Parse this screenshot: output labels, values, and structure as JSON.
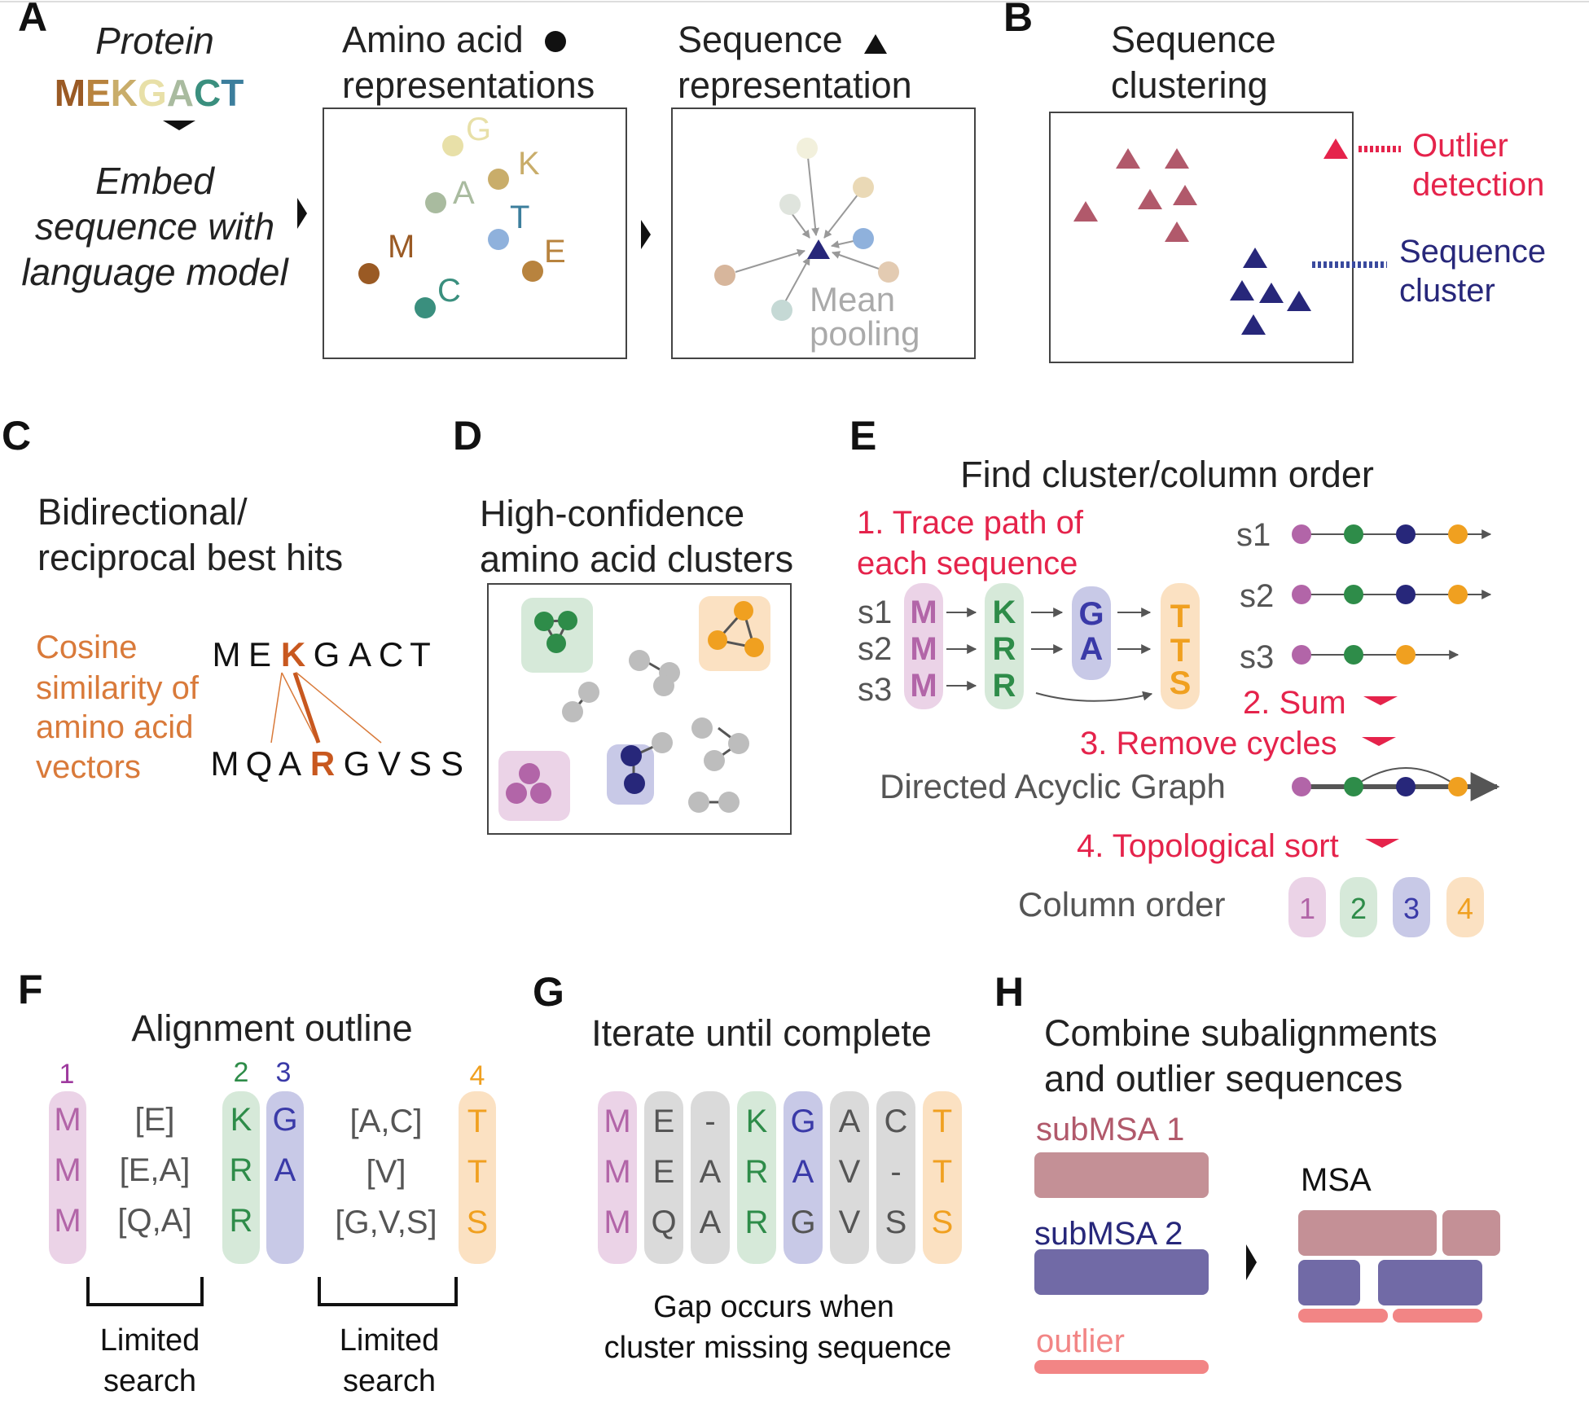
{
  "colors": {
    "M": "#9a5a24",
    "E": "#b8833e",
    "K": "#c9ad6a",
    "G": "#e8e0a8",
    "A": "#a9bb9f",
    "C": "#3a8f7e",
    "T": "#3c7e9c",
    "Tdot": "#8fb1dc",
    "cluster_red": "#b1596b",
    "cluster_blue": "#27277a",
    "accent_red": "#e5234b",
    "orange": "#d97a3a",
    "col1": "#b265a8",
    "col2": "#2e8c49",
    "col3": "#3a3aa8",
    "col4": "#f0a020",
    "submsa1": "#c49096",
    "submsa2": "#716aa6",
    "outlier": "#f28585"
  },
  "panel_a": {
    "letter": "A",
    "protein_label": "Protein",
    "protein_seq": [
      "M",
      "E",
      "K",
      "G",
      "A",
      "C",
      "T"
    ],
    "embed_text": [
      "Embed",
      "sequence with",
      "language model"
    ],
    "aa_title": [
      "Amino acid",
      "representations"
    ],
    "aa_points": [
      {
        "label": "G",
        "color_key": "G"
      },
      {
        "label": "K",
        "color_key": "K"
      },
      {
        "label": "A",
        "color_key": "A"
      },
      {
        "label": "T",
        "color_key": "T"
      },
      {
        "label": "M",
        "color_key": "M"
      },
      {
        "label": "E",
        "color_key": "E"
      },
      {
        "label": "C",
        "color_key": "C"
      }
    ],
    "seq_title": [
      "Sequence",
      "representation"
    ],
    "pooling_label": [
      "Mean",
      "pooling"
    ]
  },
  "panel_b": {
    "letter": "B",
    "title": [
      "Sequence",
      "clustering"
    ],
    "outlier_label": [
      "Outlier",
      "detection"
    ],
    "cluster_label": [
      "Sequence",
      "cluster"
    ]
  },
  "panel_c": {
    "letter": "C",
    "title": [
      "Bidirectional/",
      "reciprocal best hits"
    ],
    "cosine_label": [
      "Cosine",
      "similarity of",
      "amino acid",
      "vectors"
    ],
    "seq_top": [
      "M",
      "E",
      "K",
      "G",
      "A",
      "C",
      "T"
    ],
    "seq_bottom": [
      "M",
      "Q",
      "A",
      "R",
      "G",
      "V",
      "S",
      "S"
    ]
  },
  "panel_d": {
    "letter": "D",
    "title": [
      "High-confidence",
      "amino acid clusters"
    ]
  },
  "panel_e": {
    "letter": "E",
    "title": "Find cluster/column order",
    "step1": [
      "1. Trace path of",
      "each sequence"
    ],
    "seq_labels": [
      "s1",
      "s2",
      "s3"
    ],
    "col1_letters": [
      "M",
      "M",
      "M"
    ],
    "col2_letters": [
      "K",
      "R",
      "R"
    ],
    "col3_letters": [
      "G",
      "A"
    ],
    "col4_letters": [
      "T",
      "T",
      "S"
    ],
    "step2": "2. Sum",
    "step3": "3. Remove cycles",
    "dag_label": "Directed Acyclic Graph",
    "step4": "4. Topological sort",
    "column_order_label": "Column order",
    "column_order": [
      "1",
      "2",
      "3",
      "4"
    ]
  },
  "panel_f": {
    "letter": "F",
    "title": "Alignment outline",
    "col_numbers": [
      "1",
      "2",
      "3",
      "4"
    ],
    "col1": [
      "M",
      "M",
      "M"
    ],
    "gap1": [
      "[E]",
      "[E,A]",
      "[Q,A]"
    ],
    "col2": [
      "K",
      "R",
      "R"
    ],
    "col3": [
      "G",
      "A"
    ],
    "gap2": [
      "[A,C]",
      "[V]",
      "[G,V,S]"
    ],
    "col4": [
      "T",
      "T",
      "S"
    ],
    "search1": [
      "Limited",
      "search"
    ],
    "search2": [
      "Limited",
      "search"
    ]
  },
  "panel_g": {
    "letter": "G",
    "title": "Iterate until complete",
    "columns": [
      [
        "M",
        "M",
        "M"
      ],
      [
        "E",
        "E",
        "Q"
      ],
      [
        "-",
        "A",
        "A"
      ],
      [
        "K",
        "R",
        "R"
      ],
      [
        "G",
        "A",
        "G"
      ],
      [
        "A",
        "V",
        "V"
      ],
      [
        "C",
        "-",
        "S"
      ],
      [
        "T",
        "T",
        "S"
      ]
    ],
    "caption": [
      "Gap occurs when",
      "cluster missing sequence"
    ]
  },
  "panel_h": {
    "letter": "H",
    "title": [
      "Combine subalignments",
      "and outlier sequences"
    ],
    "submsa1_label": "subMSA 1",
    "submsa2_label": "subMSA 2",
    "outlier_label": "outlier",
    "msa_label": "MSA"
  }
}
